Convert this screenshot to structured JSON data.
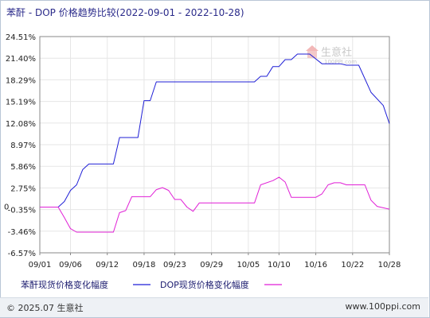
{
  "title": "苯酐 - DOP 价格趋势比较(2022-09-01 - 2022-10-28)",
  "watermark": {
    "brand": "生意社",
    "site": "100PPI.com"
  },
  "footer": {
    "copyright": "© 2025.07 生意社",
    "url": "www.100ppi.com"
  },
  "colors": {
    "series_1": "#1f1fd6",
    "series_2": "#e01fd6",
    "axis": "#888888",
    "grid": "#e6e6e6"
  },
  "chart_data": {
    "type": "line",
    "title": "苯酐 - DOP 价格趋势比较(2022-09-01 - 2022-10-28)",
    "xlabel": "",
    "ylabel": "",
    "x_range": [
      "2022-09-01",
      "2022-10-28"
    ],
    "ylim": [
      -6.57,
      24.51
    ],
    "y_ticks": [
      "24.51%",
      "21.40%",
      "18.29%",
      "15.19%",
      "12.08%",
      "8.97%",
      "5.86%",
      "2.75%",
      "-0.35%",
      "-3.46%",
      "-6.57%"
    ],
    "y_tick_values": [
      24.51,
      21.4,
      18.29,
      15.19,
      12.08,
      8.97,
      5.86,
      2.75,
      -0.35,
      -3.46,
      -6.57
    ],
    "zero_label": "0",
    "x_ticks": [
      "09/01",
      "09/06",
      "09/12",
      "09/18",
      "09/23",
      "09/29",
      "10/05",
      "10/10",
      "10/16",
      "10/22",
      "10/28"
    ],
    "x_tick_dates": [
      "2022-09-01",
      "2022-09-06",
      "2022-09-12",
      "2022-09-18",
      "2022-09-23",
      "2022-09-29",
      "2022-10-05",
      "2022-10-10",
      "2022-10-16",
      "2022-10-22",
      "2022-10-28"
    ],
    "grid": true,
    "legend_position": "bottom",
    "series": [
      {
        "name": "苯酐现货价格变化幅度",
        "color": "#1f1fd6",
        "points": [
          [
            "2022-09-01",
            0.0
          ],
          [
            "2022-09-04",
            0.0
          ],
          [
            "2022-09-05",
            0.8
          ],
          [
            "2022-09-06",
            2.4
          ],
          [
            "2022-09-07",
            3.2
          ],
          [
            "2022-09-08",
            5.4
          ],
          [
            "2022-09-09",
            6.2
          ],
          [
            "2022-09-10",
            6.2
          ],
          [
            "2022-09-13",
            6.2
          ],
          [
            "2022-09-14",
            10.0
          ],
          [
            "2022-09-17",
            10.0
          ],
          [
            "2022-09-18",
            15.3
          ],
          [
            "2022-09-19",
            15.3
          ],
          [
            "2022-09-20",
            18.0
          ],
          [
            "2022-10-06",
            18.0
          ],
          [
            "2022-10-07",
            18.8
          ],
          [
            "2022-10-08",
            18.8
          ],
          [
            "2022-10-09",
            20.2
          ],
          [
            "2022-10-10",
            20.2
          ],
          [
            "2022-10-11",
            21.2
          ],
          [
            "2022-10-12",
            21.2
          ],
          [
            "2022-10-13",
            22.0
          ],
          [
            "2022-10-15",
            22.0
          ],
          [
            "2022-10-17",
            20.6
          ],
          [
            "2022-10-20",
            20.6
          ],
          [
            "2022-10-21",
            20.4
          ],
          [
            "2022-10-23",
            20.4
          ],
          [
            "2022-10-25",
            16.5
          ],
          [
            "2022-10-27",
            14.6
          ],
          [
            "2022-10-28",
            12.0
          ]
        ]
      },
      {
        "name": "DOP现货价格变化幅度",
        "color": "#e01fd6",
        "points": [
          [
            "2022-09-01",
            0.0
          ],
          [
            "2022-09-04",
            0.0
          ],
          [
            "2022-09-05",
            -1.5
          ],
          [
            "2022-09-06",
            -3.1
          ],
          [
            "2022-09-07",
            -3.6
          ],
          [
            "2022-09-13",
            -3.6
          ],
          [
            "2022-09-14",
            -0.8
          ],
          [
            "2022-09-15",
            -0.5
          ],
          [
            "2022-09-16",
            1.5
          ],
          [
            "2022-09-19",
            1.5
          ],
          [
            "2022-09-20",
            2.5
          ],
          [
            "2022-09-21",
            2.8
          ],
          [
            "2022-09-22",
            2.4
          ],
          [
            "2022-09-23",
            1.1
          ],
          [
            "2022-09-24",
            1.1
          ],
          [
            "2022-09-25",
            0.0
          ],
          [
            "2022-09-26",
            -0.6
          ],
          [
            "2022-09-27",
            0.6
          ],
          [
            "2022-10-06",
            0.6
          ],
          [
            "2022-10-07",
            3.2
          ],
          [
            "2022-10-09",
            3.8
          ],
          [
            "2022-10-10",
            4.3
          ],
          [
            "2022-10-11",
            3.6
          ],
          [
            "2022-10-12",
            1.4
          ],
          [
            "2022-10-16",
            1.4
          ],
          [
            "2022-10-17",
            1.9
          ],
          [
            "2022-10-18",
            3.2
          ],
          [
            "2022-10-19",
            3.5
          ],
          [
            "2022-10-20",
            3.5
          ],
          [
            "2022-10-21",
            3.2
          ],
          [
            "2022-10-24",
            3.2
          ],
          [
            "2022-10-25",
            1.0
          ],
          [
            "2022-10-26",
            0.1
          ],
          [
            "2022-10-28",
            -0.3
          ]
        ]
      }
    ]
  }
}
